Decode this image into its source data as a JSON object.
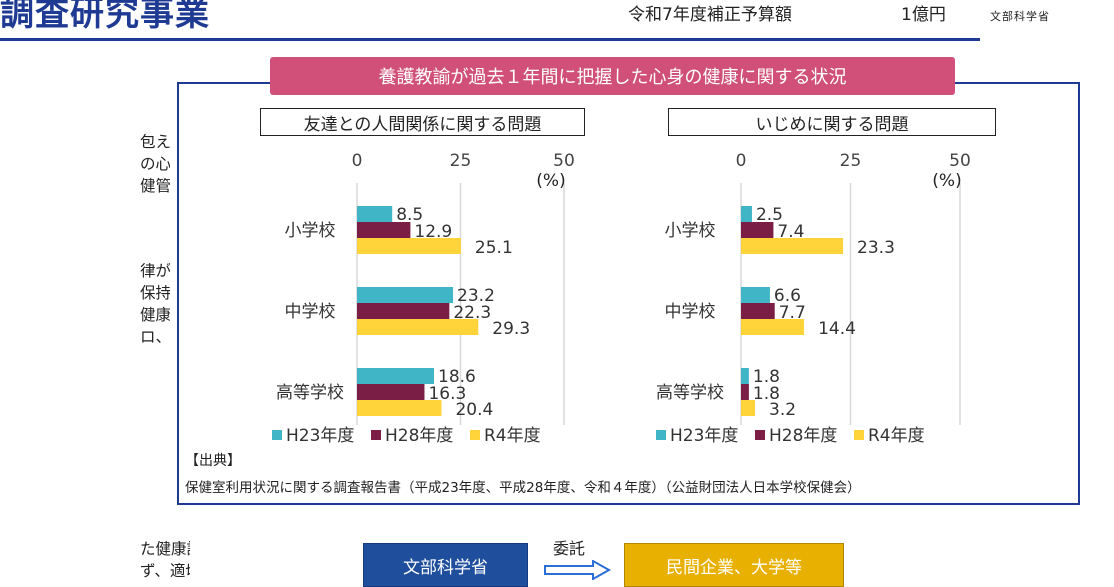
{
  "header": {
    "title": "調査研究事業",
    "budget_label": "令和7年度補正予算額",
    "budget_amount": "1億円",
    "ministry_logo": "文部科学省"
  },
  "left_text": {
    "para1": "包える現代的な\nの心身の健康の\n健管理の確保が",
    "para2": "律が公布され、\n保持のための健\n健康課題として、\nロ、今後どのよう",
    "para3": "た健康課題に対応\nず、適切な対応"
  },
  "panel": {
    "title": "養護教諭が過去１年間に把握した心身の健康に関する状況",
    "source_header": "【出典】",
    "source_text": "保健室利用状況に関する調査報告書（平成23年度、平成28年度、令和４年度）（公益財団法人日本学校保健会）"
  },
  "chart_data": [
    {
      "type": "bar",
      "orientation": "horizontal",
      "title": "友達との人間関係に関する問題",
      "categories": [
        "小学校",
        "中学校",
        "高等学校"
      ],
      "series": [
        {
          "name": "H23年度",
          "values": [
            8.5,
            23.2,
            18.6
          ],
          "color": "#3fb5c6"
        },
        {
          "name": "H28年度",
          "values": [
            12.9,
            22.3,
            16.3
          ],
          "color": "#7b1e45"
        },
        {
          "name": "R4年度",
          "values": [
            25.1,
            29.3,
            20.4
          ],
          "color": "#ffd43a"
        }
      ],
      "xlim": [
        0,
        50
      ],
      "ticks": [
        "0",
        "25",
        "50"
      ],
      "unit_label": "(%)",
      "grid": true,
      "legend": "bottom"
    },
    {
      "type": "bar",
      "orientation": "horizontal",
      "title": "いじめに関する問題",
      "categories": [
        "小学校",
        "中学校",
        "高等学校"
      ],
      "series": [
        {
          "name": "H23年度",
          "values": [
            2.5,
            6.6,
            1.8
          ],
          "color": "#3fb5c6"
        },
        {
          "name": "H28年度",
          "values": [
            7.4,
            7.7,
            1.8
          ],
          "color": "#7b1e45"
        },
        {
          "name": "R4年度",
          "values": [
            23.3,
            14.4,
            3.2
          ],
          "color": "#ffd43a"
        }
      ],
      "xlim": [
        0,
        50
      ],
      "ticks": [
        "0",
        "25",
        "50"
      ],
      "unit_label": "(%)",
      "grid": true,
      "legend": "bottom"
    }
  ],
  "flow": {
    "ministry": "文部科学省",
    "contract_label": "委託",
    "partner": "民間企業、大学等"
  }
}
